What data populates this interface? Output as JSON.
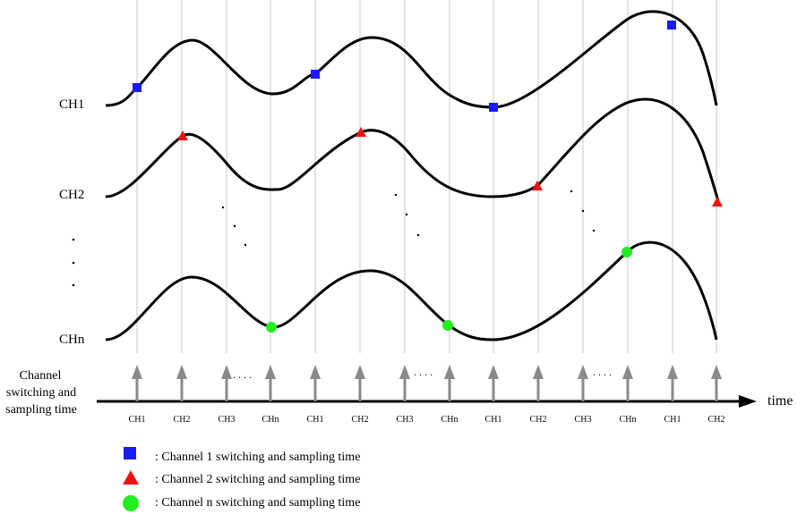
{
  "signals": [
    {
      "label": "CH1",
      "marker": "square"
    },
    {
      "label": "CH2",
      "marker": "triangle"
    },
    {
      "label": "CHn",
      "marker": "circle"
    }
  ],
  "vertical_dots": "· · ·",
  "axis": {
    "side_label_lines": [
      "Channel",
      "switching and",
      "sampling time"
    ],
    "time_label": "time",
    "ticks": [
      "CH1",
      "CH2",
      "CH3",
      "CHn",
      "CH1",
      "CH2",
      "CH3",
      "CHn",
      "CH1",
      "CH2",
      "CH3",
      "CHn",
      "CH1",
      "CH2"
    ],
    "ellipsis": ". . . ."
  },
  "legend": [
    {
      "marker": "square",
      "text": ": Channel 1 switching and sampling time"
    },
    {
      "marker": "triangle",
      "text": ": Channel 2 switching and sampling time"
    },
    {
      "marker": "circle",
      "text": ": Channel n switching and sampling time"
    }
  ],
  "colors": {
    "square": "#1a1aff",
    "triangle": "#ee1111",
    "circle": "#22ee22",
    "grid": "#c8c8c8",
    "arrow": "#8a8a8a",
    "curve": "#000000"
  }
}
